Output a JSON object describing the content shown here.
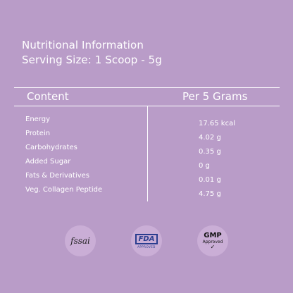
{
  "header": {
    "title": "Nutritional Information",
    "serving": "Serving Size: 1 Scoop - 5g"
  },
  "table": {
    "col_left": "Content",
    "col_right": "Per 5 Grams",
    "rows": [
      {
        "name": "Energy",
        "value": "17.65 kcal"
      },
      {
        "name": "Protein",
        "value": "4.02 g"
      },
      {
        "name": "Carbohydrates",
        "value": "0.35 g"
      },
      {
        "name": "Added Sugar",
        "value": "0 g"
      },
      {
        "name": "Fats & Derivatives",
        "value": "0.01 g"
      },
      {
        "name": "Veg. Collagen Peptide",
        "value": "4.75 g"
      }
    ]
  },
  "certifications": {
    "fssai": "fssai",
    "fda": "FDA",
    "fda_sub": "APPROVED",
    "gmp": "GMP",
    "gmp_sub": "Approved",
    "gmp_check": "✓"
  },
  "colors": {
    "background": "#b99cc8",
    "text": "#ffffff"
  }
}
